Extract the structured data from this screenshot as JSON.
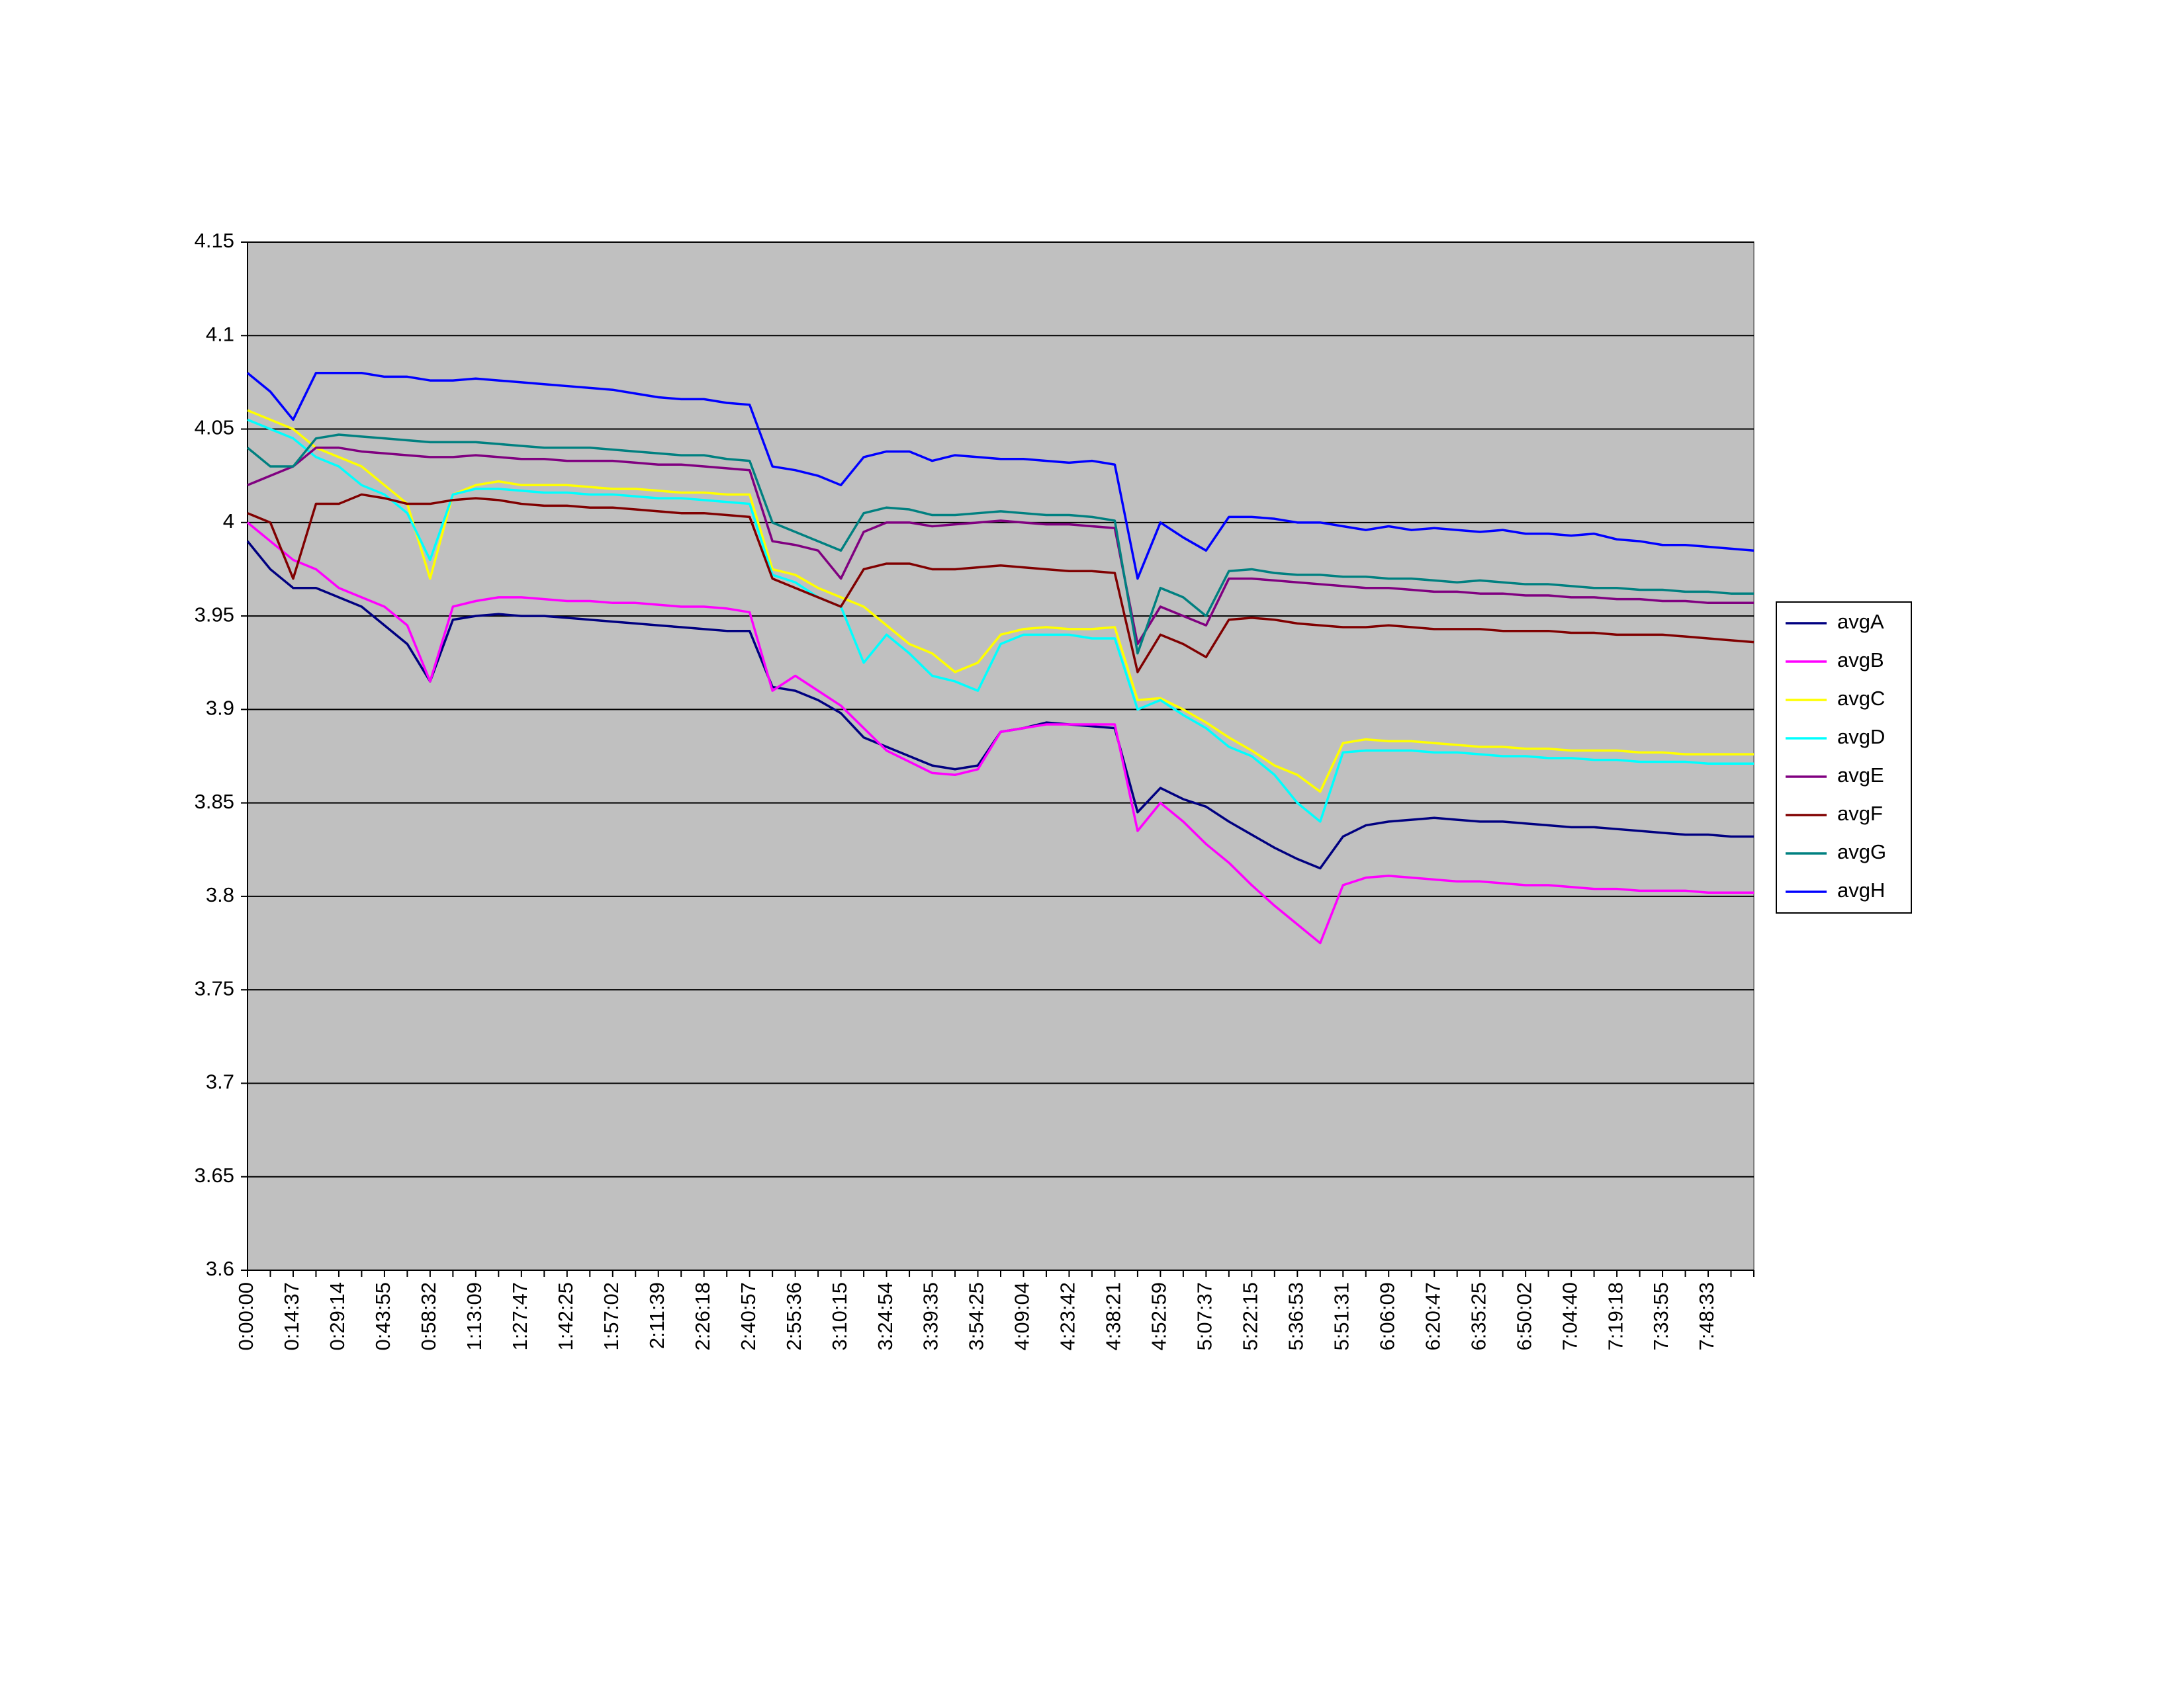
{
  "chart_data": {
    "type": "line",
    "categories": [
      "0:00:00",
      null,
      "0:14:37",
      null,
      "0:29:14",
      null,
      "0:43:55",
      null,
      "0:58:32",
      null,
      "1:13:09",
      null,
      "1:27:47",
      null,
      "1:42:25",
      null,
      "1:57:02",
      null,
      "2:11:39",
      null,
      "2:26:18",
      null,
      "2:40:57",
      null,
      "2:55:36",
      null,
      "3:10:15",
      null,
      "3:24:54",
      null,
      "3:39:35",
      null,
      "3:54:25",
      null,
      "4:09:04",
      null,
      "4:23:42",
      null,
      "4:38:21",
      null,
      "4:52:59",
      null,
      "5:07:37",
      null,
      "5:22:15",
      null,
      "5:36:53",
      null,
      "5:51:31",
      null,
      "6:06:09",
      null,
      "6:20:47",
      null,
      "6:35:25",
      null,
      "6:50:02",
      null,
      "7:04:40",
      null,
      "7:19:18",
      null,
      "7:33:55",
      null,
      "7:48:33",
      null,
      null
    ],
    "series": [
      {
        "name": "avgA",
        "color": "#000080",
        "values": [
          3.99,
          3.975,
          3.965,
          3.965,
          3.96,
          3.955,
          3.945,
          3.935,
          3.915,
          3.948,
          3.95,
          3.951,
          3.95,
          3.95,
          3.949,
          3.948,
          3.947,
          3.946,
          3.945,
          3.944,
          3.943,
          3.942,
          3.942,
          3.912,
          3.91,
          3.905,
          3.898,
          3.885,
          3.88,
          3.875,
          3.87,
          3.868,
          3.87,
          3.888,
          3.89,
          3.893,
          3.892,
          3.891,
          3.89,
          3.845,
          3.858,
          3.852,
          3.848,
          3.84,
          3.833,
          3.826,
          3.82,
          3.815,
          3.832,
          3.838,
          3.84,
          3.841,
          3.842,
          3.841,
          3.84,
          3.84,
          3.839,
          3.838,
          3.837,
          3.837,
          3.836,
          3.835,
          3.834,
          3.833,
          3.833,
          3.832,
          3.832
        ]
      },
      {
        "name": "avgB",
        "color": "#ff00ff",
        "values": [
          4.0,
          3.99,
          3.98,
          3.975,
          3.965,
          3.96,
          3.955,
          3.945,
          3.915,
          3.955,
          3.958,
          3.96,
          3.96,
          3.959,
          3.958,
          3.958,
          3.957,
          3.957,
          3.956,
          3.955,
          3.955,
          3.954,
          3.952,
          3.91,
          3.918,
          3.91,
          3.902,
          3.89,
          3.878,
          3.872,
          3.866,
          3.865,
          3.868,
          3.888,
          3.89,
          3.892,
          3.892,
          3.892,
          3.892,
          3.835,
          3.85,
          3.84,
          3.828,
          3.818,
          3.806,
          3.795,
          3.785,
          3.775,
          3.806,
          3.81,
          3.811,
          3.81,
          3.809,
          3.808,
          3.808,
          3.807,
          3.806,
          3.806,
          3.805,
          3.804,
          3.804,
          3.803,
          3.803,
          3.803,
          3.802,
          3.802,
          3.802
        ]
      },
      {
        "name": "avgC",
        "color": "#ffff00",
        "values": [
          4.06,
          4.055,
          4.05,
          4.04,
          4.035,
          4.03,
          4.02,
          4.01,
          3.97,
          4.015,
          4.02,
          4.022,
          4.02,
          4.02,
          4.02,
          4.019,
          4.018,
          4.018,
          4.017,
          4.016,
          4.016,
          4.015,
          4.015,
          3.975,
          3.972,
          3.965,
          3.96,
          3.955,
          3.945,
          3.935,
          3.93,
          3.92,
          3.925,
          3.94,
          3.943,
          3.944,
          3.943,
          3.943,
          3.944,
          3.905,
          3.906,
          3.9,
          3.893,
          3.885,
          3.878,
          3.87,
          3.865,
          3.856,
          3.882,
          3.884,
          3.883,
          3.883,
          3.882,
          3.881,
          3.88,
          3.88,
          3.879,
          3.879,
          3.878,
          3.878,
          3.878,
          3.877,
          3.877,
          3.876,
          3.876,
          3.876,
          3.876
        ]
      },
      {
        "name": "avgD",
        "color": "#00ffff",
        "values": [
          4.055,
          4.05,
          4.045,
          4.035,
          4.03,
          4.02,
          4.015,
          4.005,
          3.98,
          4.015,
          4.018,
          4.018,
          4.017,
          4.016,
          4.016,
          4.015,
          4.015,
          4.014,
          4.013,
          4.013,
          4.012,
          4.011,
          4.01,
          3.972,
          3.968,
          3.96,
          3.955,
          3.925,
          3.94,
          3.93,
          3.918,
          3.915,
          3.91,
          3.935,
          3.94,
          3.94,
          3.94,
          3.938,
          3.938,
          3.9,
          3.905,
          3.897,
          3.89,
          3.88,
          3.875,
          3.865,
          3.85,
          3.84,
          3.877,
          3.878,
          3.878,
          3.878,
          3.877,
          3.877,
          3.876,
          3.875,
          3.875,
          3.874,
          3.874,
          3.873,
          3.873,
          3.872,
          3.872,
          3.872,
          3.871,
          3.871,
          3.871
        ]
      },
      {
        "name": "avgE",
        "color": "#800080",
        "values": [
          4.02,
          4.025,
          4.03,
          4.04,
          4.04,
          4.038,
          4.037,
          4.036,
          4.035,
          4.035,
          4.036,
          4.035,
          4.034,
          4.034,
          4.033,
          4.033,
          4.033,
          4.032,
          4.031,
          4.031,
          4.03,
          4.029,
          4.028,
          3.99,
          3.988,
          3.985,
          3.97,
          3.995,
          4.0,
          4.0,
          3.998,
          3.999,
          4.0,
          4.001,
          4.0,
          3.999,
          3.999,
          3.998,
          3.997,
          3.935,
          3.955,
          3.95,
          3.945,
          3.97,
          3.97,
          3.969,
          3.968,
          3.967,
          3.966,
          3.965,
          3.965,
          3.964,
          3.963,
          3.963,
          3.962,
          3.962,
          3.961,
          3.961,
          3.96,
          3.96,
          3.959,
          3.959,
          3.958,
          3.958,
          3.957,
          3.957,
          3.957
        ]
      },
      {
        "name": "avgF",
        "color": "#800000",
        "values": [
          4.005,
          4.0,
          3.97,
          4.01,
          4.01,
          4.015,
          4.013,
          4.01,
          4.01,
          4.012,
          4.013,
          4.012,
          4.01,
          4.009,
          4.009,
          4.008,
          4.008,
          4.007,
          4.006,
          4.005,
          4.005,
          4.004,
          4.003,
          3.97,
          3.965,
          3.96,
          3.955,
          3.975,
          3.978,
          3.978,
          3.975,
          3.975,
          3.976,
          3.977,
          3.976,
          3.975,
          3.974,
          3.974,
          3.973,
          3.92,
          3.94,
          3.935,
          3.928,
          3.948,
          3.949,
          3.948,
          3.946,
          3.945,
          3.944,
          3.944,
          3.945,
          3.944,
          3.943,
          3.943,
          3.943,
          3.942,
          3.942,
          3.942,
          3.941,
          3.941,
          3.94,
          3.94,
          3.94,
          3.939,
          3.938,
          3.937,
          3.936
        ]
      },
      {
        "name": "avgG",
        "color": "#008080",
        "values": [
          4.04,
          4.03,
          4.03,
          4.045,
          4.047,
          4.046,
          4.045,
          4.044,
          4.043,
          4.043,
          4.043,
          4.042,
          4.041,
          4.04,
          4.04,
          4.04,
          4.039,
          4.038,
          4.037,
          4.036,
          4.036,
          4.034,
          4.033,
          4.0,
          3.995,
          3.99,
          3.985,
          4.005,
          4.008,
          4.007,
          4.004,
          4.004,
          4.005,
          4.006,
          4.005,
          4.004,
          4.004,
          4.003,
          4.001,
          3.93,
          3.965,
          3.96,
          3.95,
          3.974,
          3.975,
          3.973,
          3.972,
          3.972,
          3.971,
          3.971,
          3.97,
          3.97,
          3.969,
          3.968,
          3.969,
          3.968,
          3.967,
          3.967,
          3.966,
          3.965,
          3.965,
          3.964,
          3.964,
          3.963,
          3.963,
          3.962,
          3.962
        ]
      },
      {
        "name": "avgH",
        "color": "#0000ff",
        "values": [
          4.08,
          4.07,
          4.055,
          4.08,
          4.08,
          4.08,
          4.078,
          4.078,
          4.076,
          4.076,
          4.077,
          4.076,
          4.075,
          4.074,
          4.073,
          4.072,
          4.071,
          4.069,
          4.067,
          4.066,
          4.066,
          4.064,
          4.063,
          4.03,
          4.028,
          4.025,
          4.02,
          4.035,
          4.038,
          4.038,
          4.033,
          4.036,
          4.035,
          4.034,
          4.034,
          4.033,
          4.032,
          4.033,
          4.031,
          3.97,
          4.0,
          3.992,
          3.985,
          4.003,
          4.003,
          4.002,
          4.0,
          4.0,
          3.998,
          3.996,
          3.998,
          3.996,
          3.997,
          3.996,
          3.995,
          3.996,
          3.994,
          3.994,
          3.993,
          3.994,
          3.991,
          3.99,
          3.988,
          3.988,
          3.987,
          3.986,
          3.985
        ]
      }
    ],
    "ylim": [
      3.6,
      4.15
    ],
    "yticks": [
      3.6,
      3.65,
      3.7,
      3.75,
      3.8,
      3.85,
      3.9,
      3.95,
      4,
      4.05,
      4.1,
      4.15
    ],
    "grid": true,
    "plot_background": "#c0c0c0",
    "legend": "right"
  }
}
